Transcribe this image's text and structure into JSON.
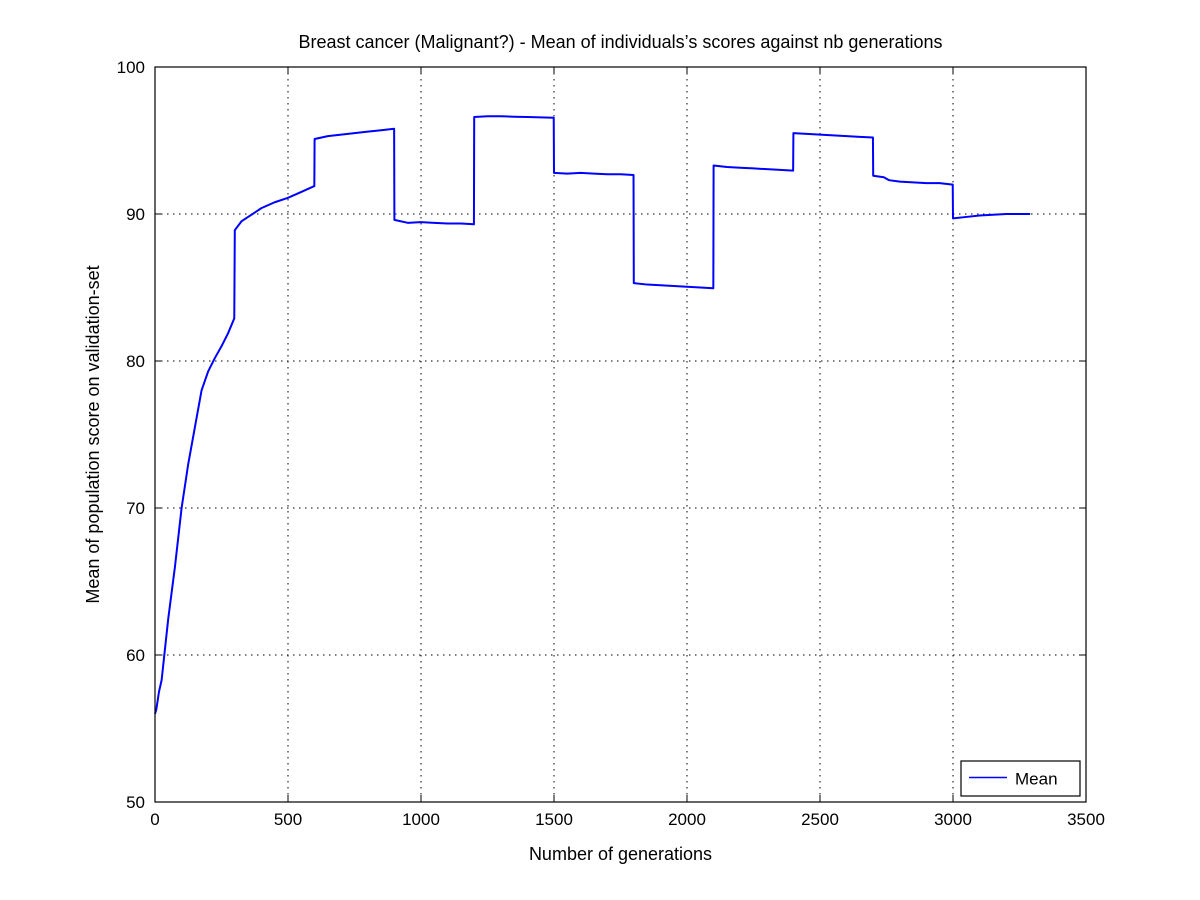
{
  "chart_data": {
    "type": "line",
    "title": "Breast cancer (Malignant?) - Mean of individuals’s scores against nb generations",
    "xlabel": "Number of generations",
    "ylabel": "Mean of population score on validation-set",
    "xlim": [
      0,
      3500
    ],
    "ylim": [
      50,
      100
    ],
    "xticks": [
      0,
      500,
      1000,
      1500,
      2000,
      2500,
      3000,
      3500
    ],
    "yticks": [
      50,
      60,
      70,
      80,
      90,
      100
    ],
    "grid": true,
    "legend_position": "bottom-right",
    "series": [
      {
        "name": "Mean",
        "color": "#0000ff",
        "points": [
          [
            0,
            56.0
          ],
          [
            5,
            56.3
          ],
          [
            15,
            57.5
          ],
          [
            25,
            58.3
          ],
          [
            35,
            60.0
          ],
          [
            50,
            62.5
          ],
          [
            75,
            66.0
          ],
          [
            100,
            70.0
          ],
          [
            125,
            73.0
          ],
          [
            150,
            75.5
          ],
          [
            175,
            78.0
          ],
          [
            200,
            79.3
          ],
          [
            225,
            80.2
          ],
          [
            250,
            81.0
          ],
          [
            275,
            81.9
          ],
          [
            298,
            82.9
          ],
          [
            300,
            88.9
          ],
          [
            325,
            89.5
          ],
          [
            350,
            89.8
          ],
          [
            375,
            90.1
          ],
          [
            400,
            90.4
          ],
          [
            450,
            90.8
          ],
          [
            500,
            91.1
          ],
          [
            550,
            91.5
          ],
          [
            599,
            91.9
          ],
          [
            600,
            95.1
          ],
          [
            650,
            95.3
          ],
          [
            700,
            95.4
          ],
          [
            750,
            95.5
          ],
          [
            800,
            95.6
          ],
          [
            850,
            95.7
          ],
          [
            899,
            95.8
          ],
          [
            900,
            89.6
          ],
          [
            950,
            89.4
          ],
          [
            1000,
            89.45
          ],
          [
            1050,
            89.4
          ],
          [
            1100,
            89.35
          ],
          [
            1150,
            89.35
          ],
          [
            1199,
            89.3
          ],
          [
            1200,
            96.6
          ],
          [
            1250,
            96.65
          ],
          [
            1300,
            96.65
          ],
          [
            1350,
            96.62
          ],
          [
            1400,
            96.6
          ],
          [
            1450,
            96.57
          ],
          [
            1499,
            96.55
          ],
          [
            1500,
            92.8
          ],
          [
            1550,
            92.75
          ],
          [
            1600,
            92.8
          ],
          [
            1650,
            92.75
          ],
          [
            1700,
            92.7
          ],
          [
            1750,
            92.7
          ],
          [
            1799,
            92.65
          ],
          [
            1800,
            85.3
          ],
          [
            1850,
            85.2
          ],
          [
            1900,
            85.15
          ],
          [
            1950,
            85.1
          ],
          [
            2000,
            85.05
          ],
          [
            2050,
            85.0
          ],
          [
            2099,
            84.95
          ],
          [
            2100,
            93.3
          ],
          [
            2150,
            93.2
          ],
          [
            2200,
            93.15
          ],
          [
            2250,
            93.1
          ],
          [
            2300,
            93.05
          ],
          [
            2350,
            93.0
          ],
          [
            2399,
            92.95
          ],
          [
            2400,
            95.5
          ],
          [
            2450,
            95.45
          ],
          [
            2500,
            95.4
          ],
          [
            2550,
            95.35
          ],
          [
            2600,
            95.3
          ],
          [
            2650,
            95.25
          ],
          [
            2699,
            95.2
          ],
          [
            2700,
            92.6
          ],
          [
            2740,
            92.5
          ],
          [
            2760,
            92.3
          ],
          [
            2800,
            92.2
          ],
          [
            2850,
            92.15
          ],
          [
            2900,
            92.1
          ],
          [
            2950,
            92.1
          ],
          [
            2999,
            92.0
          ],
          [
            3000,
            89.7
          ],
          [
            3050,
            89.8
          ],
          [
            3100,
            89.9
          ],
          [
            3150,
            89.95
          ],
          [
            3200,
            90.0
          ],
          [
            3250,
            90.0
          ],
          [
            3290,
            90.0
          ]
        ]
      }
    ]
  }
}
